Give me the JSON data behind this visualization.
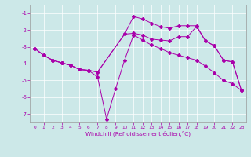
{
  "xlabel": "Windchill (Refroidissement éolien,°C)",
  "bg_color": "#cce8e8",
  "line_color": "#aa00aa",
  "grid_color": "#ffffff",
  "spine_color": "#666666",
  "ylim": [
    -7.5,
    -0.5
  ],
  "xlim": [
    -0.5,
    23.5
  ],
  "yticks": [
    -7,
    -6,
    -5,
    -4,
    -3,
    -2,
    -1
  ],
  "xticks": [
    0,
    1,
    2,
    3,
    4,
    5,
    6,
    7,
    8,
    9,
    10,
    11,
    12,
    13,
    14,
    15,
    16,
    17,
    18,
    19,
    20,
    21,
    22,
    23
  ],
  "series": {
    "upper": [
      [
        0,
        -3.1
      ],
      [
        1,
        -3.5
      ],
      [
        2,
        -3.8
      ],
      [
        3,
        -3.95
      ],
      [
        4,
        -4.1
      ],
      [
        5,
        -4.35
      ],
      [
        6,
        -4.4
      ],
      [
        7,
        -4.5
      ],
      [
        10,
        -2.25
      ],
      [
        11,
        -2.2
      ],
      [
        12,
        -2.3
      ],
      [
        13,
        -2.55
      ],
      [
        14,
        -2.6
      ],
      [
        15,
        -2.65
      ],
      [
        16,
        -2.4
      ],
      [
        17,
        -2.4
      ],
      [
        18,
        -1.8
      ],
      [
        19,
        -2.65
      ],
      [
        20,
        -2.95
      ],
      [
        21,
        -3.8
      ],
      [
        22,
        -3.9
      ],
      [
        23,
        -5.6
      ]
    ],
    "mid_upper": [
      [
        0,
        -3.1
      ],
      [
        1,
        -3.5
      ],
      [
        2,
        -3.8
      ],
      [
        3,
        -3.95
      ],
      [
        4,
        -4.1
      ],
      [
        5,
        -4.35
      ],
      [
        6,
        -4.4
      ],
      [
        7,
        -4.5
      ],
      [
        10,
        -2.25
      ],
      [
        11,
        -1.2
      ],
      [
        12,
        -1.35
      ],
      [
        13,
        -1.6
      ],
      [
        14,
        -1.8
      ],
      [
        15,
        -1.9
      ],
      [
        16,
        -1.75
      ],
      [
        17,
        -1.75
      ],
      [
        18,
        -1.75
      ],
      [
        19,
        -2.65
      ],
      [
        20,
        -2.95
      ],
      [
        21,
        -3.8
      ],
      [
        22,
        -3.9
      ],
      [
        23,
        -5.6
      ]
    ],
    "lower": [
      [
        0,
        -3.1
      ],
      [
        1,
        -3.5
      ],
      [
        2,
        -3.8
      ],
      [
        3,
        -3.95
      ],
      [
        4,
        -4.1
      ],
      [
        5,
        -4.35
      ],
      [
        6,
        -4.4
      ],
      [
        7,
        -4.8
      ],
      [
        8,
        -7.3
      ],
      [
        9,
        -5.5
      ],
      [
        10,
        -3.8
      ],
      [
        11,
        -2.3
      ],
      [
        12,
        -2.6
      ],
      [
        13,
        -2.9
      ],
      [
        14,
        -3.1
      ],
      [
        15,
        -3.35
      ],
      [
        16,
        -3.5
      ],
      [
        17,
        -3.65
      ],
      [
        18,
        -3.8
      ],
      [
        19,
        -4.15
      ],
      [
        20,
        -4.55
      ],
      [
        21,
        -5.0
      ],
      [
        22,
        -5.2
      ],
      [
        23,
        -5.6
      ]
    ]
  }
}
